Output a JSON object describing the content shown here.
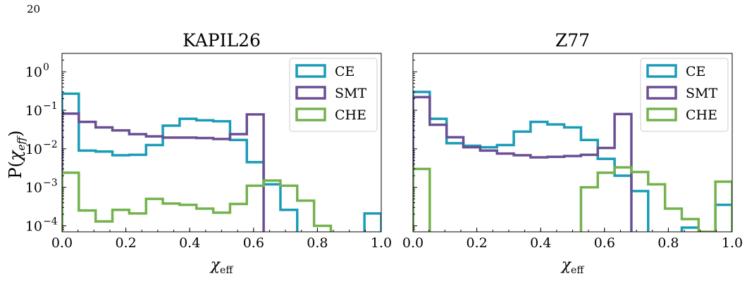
{
  "page_number": "20",
  "colors": {
    "CE": "#1a9cb8",
    "SMT": "#6a4f94",
    "CHE": "#73b24d"
  },
  "y_label": "P(χeff)",
  "y_label_main": "P(",
  "y_label_sym": "χ",
  "y_label_sub": "eff",
  "y_label_close": ")",
  "x_label_sym": "χ",
  "x_label_sub": "eff",
  "chart_data": [
    {
      "type": "histogram",
      "title": "KAPIL26",
      "xlabel": "χeff",
      "ylabel": "P(χeff)",
      "xlim": [
        0.0,
        1.0
      ],
      "ylim": [
        7e-05,
        3.0
      ],
      "yscale": "log",
      "x_ticks": [
        "0.0",
        "0.2",
        "0.4",
        "0.6",
        "0.8",
        "1.0"
      ],
      "y_ticks": [
        {
          "base": "10",
          "exp": "0"
        },
        {
          "base": "10",
          "exp": "−1"
        },
        {
          "base": "10",
          "exp": "−2"
        },
        {
          "base": "10",
          "exp": "−3"
        },
        {
          "base": "10",
          "exp": "−4"
        }
      ],
      "legend_position": "top-right",
      "bin_edges": [
        0.0,
        0.0526,
        0.1053,
        0.1579,
        0.2105,
        0.2632,
        0.3158,
        0.3684,
        0.4211,
        0.4737,
        0.5263,
        0.5789,
        0.6316,
        0.6842,
        0.7368,
        0.7895,
        0.8421,
        0.8947,
        0.9474,
        1.0
      ],
      "series": [
        {
          "name": "CE",
          "values": [
            0.27,
            0.009,
            0.0085,
            0.0068,
            0.007,
            0.0125,
            0.04,
            0.06,
            0.055,
            0.052,
            0.017,
            0.0045,
            0.0012,
            0.00026,
            null,
            null,
            null,
            null,
            0.00021
          ]
        },
        {
          "name": "SMT",
          "values": [
            0.082,
            0.05,
            0.036,
            0.03,
            0.024,
            0.021,
            0.0195,
            0.0195,
            0.019,
            0.018,
            0.024,
            0.078,
            0.0,
            null,
            null,
            null,
            null,
            null,
            null
          ]
        },
        {
          "name": "CHE",
          "values": [
            0.0024,
            0.00025,
            0.00013,
            0.00026,
            0.00021,
            0.0005,
            0.00038,
            0.00035,
            0.00028,
            0.00022,
            0.00037,
            0.0011,
            0.0015,
            0.0011,
            0.00045,
            0.0001,
            0.0,
            null,
            null
          ]
        }
      ]
    },
    {
      "type": "histogram",
      "title": "Z77",
      "xlabel": "χeff",
      "ylabel": "",
      "xlim": [
        0.0,
        1.0
      ],
      "ylim": [
        7e-05,
        3.0
      ],
      "yscale": "log",
      "x_ticks": [
        "0.0",
        "0.2",
        "0.4",
        "0.6",
        "0.8",
        "1.0"
      ],
      "legend_position": "top-right",
      "bin_edges": [
        0.0,
        0.0526,
        0.1053,
        0.1579,
        0.2105,
        0.2632,
        0.3158,
        0.3684,
        0.4211,
        0.4737,
        0.5263,
        0.5789,
        0.6316,
        0.6842,
        0.7368,
        0.7895,
        0.8421,
        0.8947,
        0.9474,
        1.0
      ],
      "series": [
        {
          "name": "CE",
          "values": [
            0.3,
            0.06,
            0.014,
            0.012,
            0.011,
            0.0125,
            0.028,
            0.05,
            0.043,
            0.036,
            0.017,
            0.0055,
            0.002,
            0.0008,
            0.0,
            null,
            9e-05,
            null,
            0.00035
          ]
        },
        {
          "name": "SMT",
          "values": [
            0.22,
            0.042,
            0.02,
            0.011,
            0.009,
            0.0075,
            0.0068,
            0.006,
            0.0062,
            0.0065,
            0.007,
            0.0105,
            0.08,
            0.0,
            null,
            null,
            null,
            null,
            null
          ]
        },
        {
          "name": "CHE",
          "values": [
            0.003,
            0.0,
            null,
            null,
            null,
            null,
            null,
            null,
            null,
            null,
            0.001,
            0.0024,
            0.0033,
            0.0025,
            0.0012,
            0.00028,
            0.00015,
            7e-05,
            0.0014
          ]
        }
      ]
    }
  ]
}
